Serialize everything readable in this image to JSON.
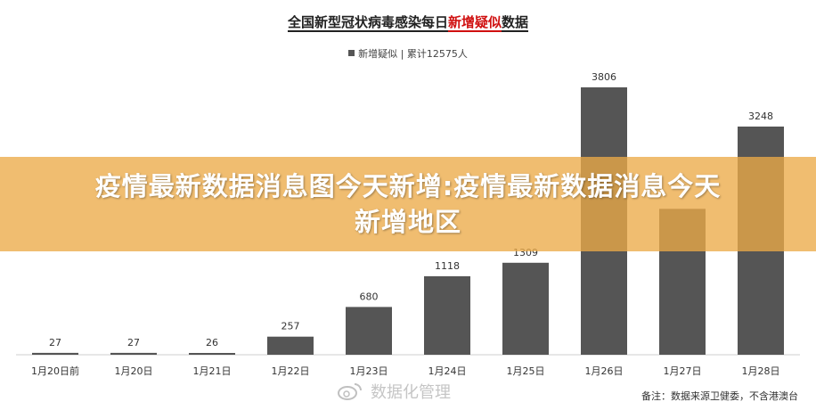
{
  "title": {
    "main": "全国新型冠状病毒感染每日",
    "highlight": "新增疑似",
    "tail": "数据"
  },
  "legend_text": "新增疑似 | 累计12575人",
  "banner": {
    "line1": "疫情最新数据消息图今天新增:疫情最新数据消息今天",
    "line2": "新增地区"
  },
  "watermark": "数据化管理",
  "footnote": "备注：数据来源卫健委，不含港澳台",
  "colors": {
    "bar": "#555555",
    "banner": "#ecaa48",
    "title_highlight": "#d01010"
  },
  "chart_data": {
    "type": "bar",
    "title": "全国新型冠状病毒感染每日新增疑似数据",
    "categories": [
      "1月20日前",
      "1月20日",
      "1月21日",
      "1月22日",
      "1月23日",
      "1月24日",
      "1月25日",
      "1月26日",
      "1月27日",
      "1月28日"
    ],
    "series": [
      {
        "name": "新增疑似",
        "values": [
          27,
          27,
          26,
          257,
          680,
          1118,
          1309,
          3806,
          2077,
          3248
        ]
      }
    ],
    "data_labels": [
      "27",
      "27",
      "26",
      "257",
      "680",
      "1118",
      "1309",
      "3806",
      "",
      "3248"
    ],
    "ylim": [
      0,
      3806
    ],
    "grid": false,
    "legend_position": "top-center"
  }
}
